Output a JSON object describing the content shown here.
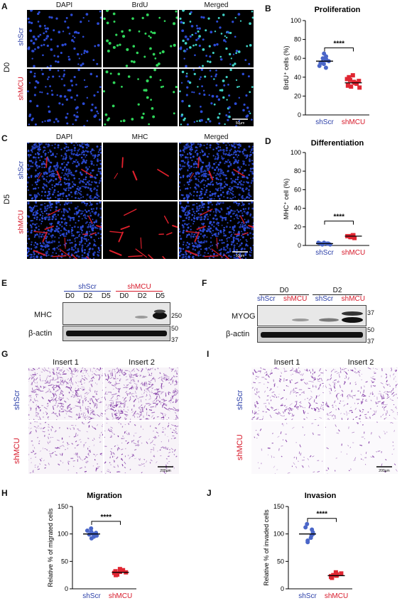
{
  "panels": {
    "A": {
      "letter": "A",
      "col_headers": [
        "DAPI",
        "BrdU",
        "Merged"
      ],
      "day": "D0",
      "rows": [
        "shScr",
        "shMCU"
      ],
      "scale": "50µm"
    },
    "B": {
      "letter": "B"
    },
    "C": {
      "letter": "C",
      "col_headers": [
        "DAPI",
        "MHC",
        "Merged"
      ],
      "day": "D5",
      "rows": [
        "shScr",
        "shMCU"
      ],
      "scale": "50µm"
    },
    "D": {
      "letter": "D"
    },
    "E": {
      "letter": "E",
      "groups": [
        "shScr",
        "shMCU"
      ],
      "lanes": [
        "D0",
        "D2",
        "D5",
        "D0",
        "D2",
        "D5"
      ],
      "bands": [
        "MHC",
        "β-actin"
      ],
      "markers": [
        "250",
        "50",
        "37"
      ]
    },
    "F": {
      "letter": "F",
      "groups": [
        "D0",
        "D2"
      ],
      "lanes": [
        "shScr",
        "shMCU",
        "shScr",
        "shMCU"
      ],
      "bands": [
        "MYOG",
        "β-actin"
      ],
      "markers": [
        "37",
        "50",
        "37"
      ]
    },
    "G": {
      "letter": "G",
      "inserts": [
        "Insert 1",
        "Insert 2"
      ],
      "rows": [
        "shScr",
        "shMCU"
      ],
      "scale": "200µm"
    },
    "I": {
      "letter": "I",
      "inserts": [
        "Insert 1",
        "Insert 2"
      ],
      "rows": [
        "shScr",
        "shMCU"
      ],
      "scale": "200µm"
    },
    "H": {
      "letter": "H"
    },
    "J": {
      "letter": "J"
    }
  },
  "colors": {
    "shScr": "#2b3fa8",
    "shMCU": "#d7192a",
    "scr_point": "#4a66c8",
    "mcu_point": "#e02632",
    "dapi": "#2c4bd6",
    "brdu": "#2fd65a",
    "mhc": "#e0202c",
    "crystal_violet": "#7a2fa0"
  },
  "chart_data": [
    {
      "id": "B",
      "type": "scatter",
      "title": "Proliferation",
      "ylabel": "BrdU⁺ cells (%)",
      "ylim": [
        0,
        100
      ],
      "yticks": [
        0,
        20,
        40,
        60,
        80,
        100
      ],
      "categories": [
        "shScr",
        "shMCU"
      ],
      "series": [
        {
          "name": "shScr",
          "values": [
            65,
            62,
            60,
            59,
            58,
            57,
            56,
            55,
            54,
            52,
            50
          ],
          "mean": 57
        },
        {
          "name": "shMCU",
          "values": [
            42,
            40,
            38,
            37,
            36,
            35,
            34,
            33,
            32,
            31,
            30,
            29
          ],
          "mean": 34
        }
      ],
      "significance": "****"
    },
    {
      "id": "D",
      "type": "scatter",
      "title": "Differentiation",
      "ylabel": "MHC⁺ cell (%)",
      "ylim": [
        0,
        100
      ],
      "yticks": [
        0,
        20,
        40,
        60,
        80,
        100
      ],
      "categories": [
        "shScr",
        "shMCU"
      ],
      "series": [
        {
          "name": "shScr",
          "values": [
            3,
            2,
            2,
            2,
            1,
            1,
            2,
            3
          ],
          "mean": 2
        },
        {
          "name": "shMCU",
          "values": [
            11,
            10,
            10,
            9,
            9,
            10,
            11,
            8
          ],
          "mean": 10
        }
      ],
      "significance": "****"
    },
    {
      "id": "H",
      "type": "scatter",
      "title": "Migration",
      "ylabel": "Relative % of migrated cells",
      "ylim": [
        0,
        150
      ],
      "yticks": [
        0,
        50,
        100,
        150
      ],
      "categories": [
        "shScr",
        "shMCU"
      ],
      "series": [
        {
          "name": "shScr",
          "values": [
            110,
            106,
            104,
            102,
            100,
            99,
            97,
            95,
            92
          ],
          "mean": 100
        },
        {
          "name": "shMCU",
          "values": [
            36,
            34,
            32,
            31,
            30,
            29,
            28,
            26,
            25
          ],
          "mean": 30
        }
      ],
      "significance": "****"
    },
    {
      "id": "J",
      "type": "scatter",
      "title": "Invasion",
      "ylabel": "Relative % of invaded cells",
      "ylim": [
        0,
        150
      ],
      "yticks": [
        0,
        50,
        100,
        150
      ],
      "categories": [
        "shScr",
        "shMCU"
      ],
      "series": [
        {
          "name": "shScr",
          "values": [
            118,
            112,
            108,
            103,
            100,
            97,
            93,
            88,
            85
          ],
          "mean": 100
        },
        {
          "name": "shMCU",
          "values": [
            30,
            28,
            27,
            26,
            25,
            24,
            23,
            22,
            20
          ],
          "mean": 24
        }
      ],
      "significance": "****"
    }
  ]
}
